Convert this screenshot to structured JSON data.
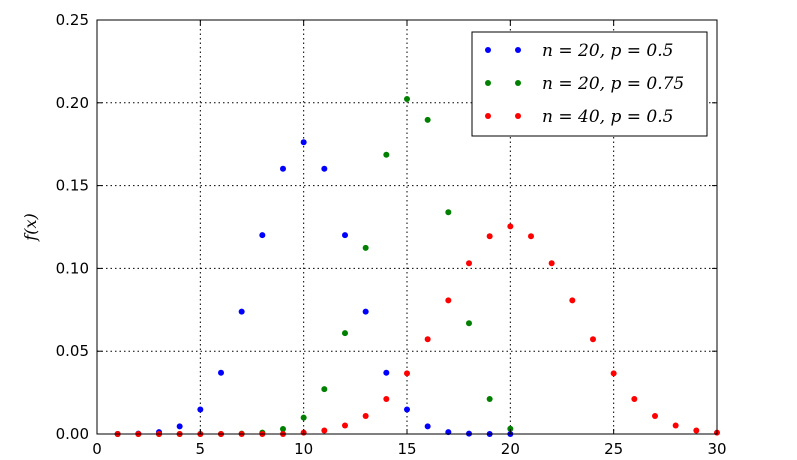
{
  "chart_data": {
    "type": "scatter",
    "title": "",
    "xlabel": "",
    "ylabel": "f(x)",
    "xlim": [
      0,
      30
    ],
    "ylim": [
      0,
      0.25
    ],
    "xticks": [
      "0",
      "5",
      "10",
      "15",
      "20",
      "25",
      "30"
    ],
    "yticks": [
      "0.00",
      "0.05",
      "0.10",
      "0.15",
      "0.20",
      "0.25"
    ],
    "grid": true,
    "legend_position": "top-right",
    "series": [
      {
        "name": "n = 20, p = 0.5",
        "color": "#0000ff",
        "points": [
          [
            1,
            0.0
          ],
          [
            2,
            0.0002
          ],
          [
            3,
            0.0011
          ],
          [
            4,
            0.0046
          ],
          [
            5,
            0.0148
          ],
          [
            6,
            0.037
          ],
          [
            7,
            0.0739
          ],
          [
            8,
            0.1201
          ],
          [
            9,
            0.1602
          ],
          [
            10,
            0.1762
          ],
          [
            11,
            0.1602
          ],
          [
            12,
            0.1201
          ],
          [
            13,
            0.0739
          ],
          [
            14,
            0.037
          ],
          [
            15,
            0.0148
          ],
          [
            16,
            0.0046
          ],
          [
            17,
            0.0011
          ],
          [
            18,
            0.0002
          ],
          [
            19,
            0.0
          ],
          [
            20,
            0.0
          ]
        ]
      },
      {
        "name": "n = 20, p = 0.75",
        "color": "#008000",
        "points": [
          [
            1,
            0.0
          ],
          [
            2,
            0.0
          ],
          [
            3,
            0.0
          ],
          [
            4,
            0.0
          ],
          [
            5,
            0.0
          ],
          [
            6,
            0.0
          ],
          [
            7,
            0.0002
          ],
          [
            8,
            0.0008
          ],
          [
            9,
            0.003
          ],
          [
            10,
            0.0099
          ],
          [
            11,
            0.0271
          ],
          [
            12,
            0.0609
          ],
          [
            13,
            0.1124
          ],
          [
            14,
            0.1686
          ],
          [
            15,
            0.2023
          ],
          [
            16,
            0.1897
          ],
          [
            17,
            0.1339
          ],
          [
            18,
            0.0669
          ],
          [
            19,
            0.0211
          ],
          [
            20,
            0.0032
          ]
        ]
      },
      {
        "name": "n = 40, p = 0.5",
        "color": "#ff0000",
        "points": [
          [
            1,
            0.0
          ],
          [
            2,
            0.0
          ],
          [
            3,
            0.0
          ],
          [
            4,
            0.0
          ],
          [
            5,
            0.0
          ],
          [
            6,
            0.0
          ],
          [
            7,
            0.0
          ],
          [
            8,
            0.0
          ],
          [
            9,
            0.0
          ],
          [
            10,
            0.0008
          ],
          [
            11,
            0.0021
          ],
          [
            12,
            0.0051
          ],
          [
            13,
            0.0109
          ],
          [
            14,
            0.0211
          ],
          [
            15,
            0.0366
          ],
          [
            16,
            0.0572
          ],
          [
            17,
            0.0807
          ],
          [
            18,
            0.1031
          ],
          [
            19,
            0.1194
          ],
          [
            20,
            0.1254
          ],
          [
            21,
            0.1194
          ],
          [
            22,
            0.1031
          ],
          [
            23,
            0.0807
          ],
          [
            24,
            0.0572
          ],
          [
            25,
            0.0366
          ],
          [
            26,
            0.0211
          ],
          [
            27,
            0.0109
          ],
          [
            28,
            0.0051
          ],
          [
            29,
            0.0021
          ],
          [
            30,
            0.0008
          ]
        ]
      }
    ]
  }
}
